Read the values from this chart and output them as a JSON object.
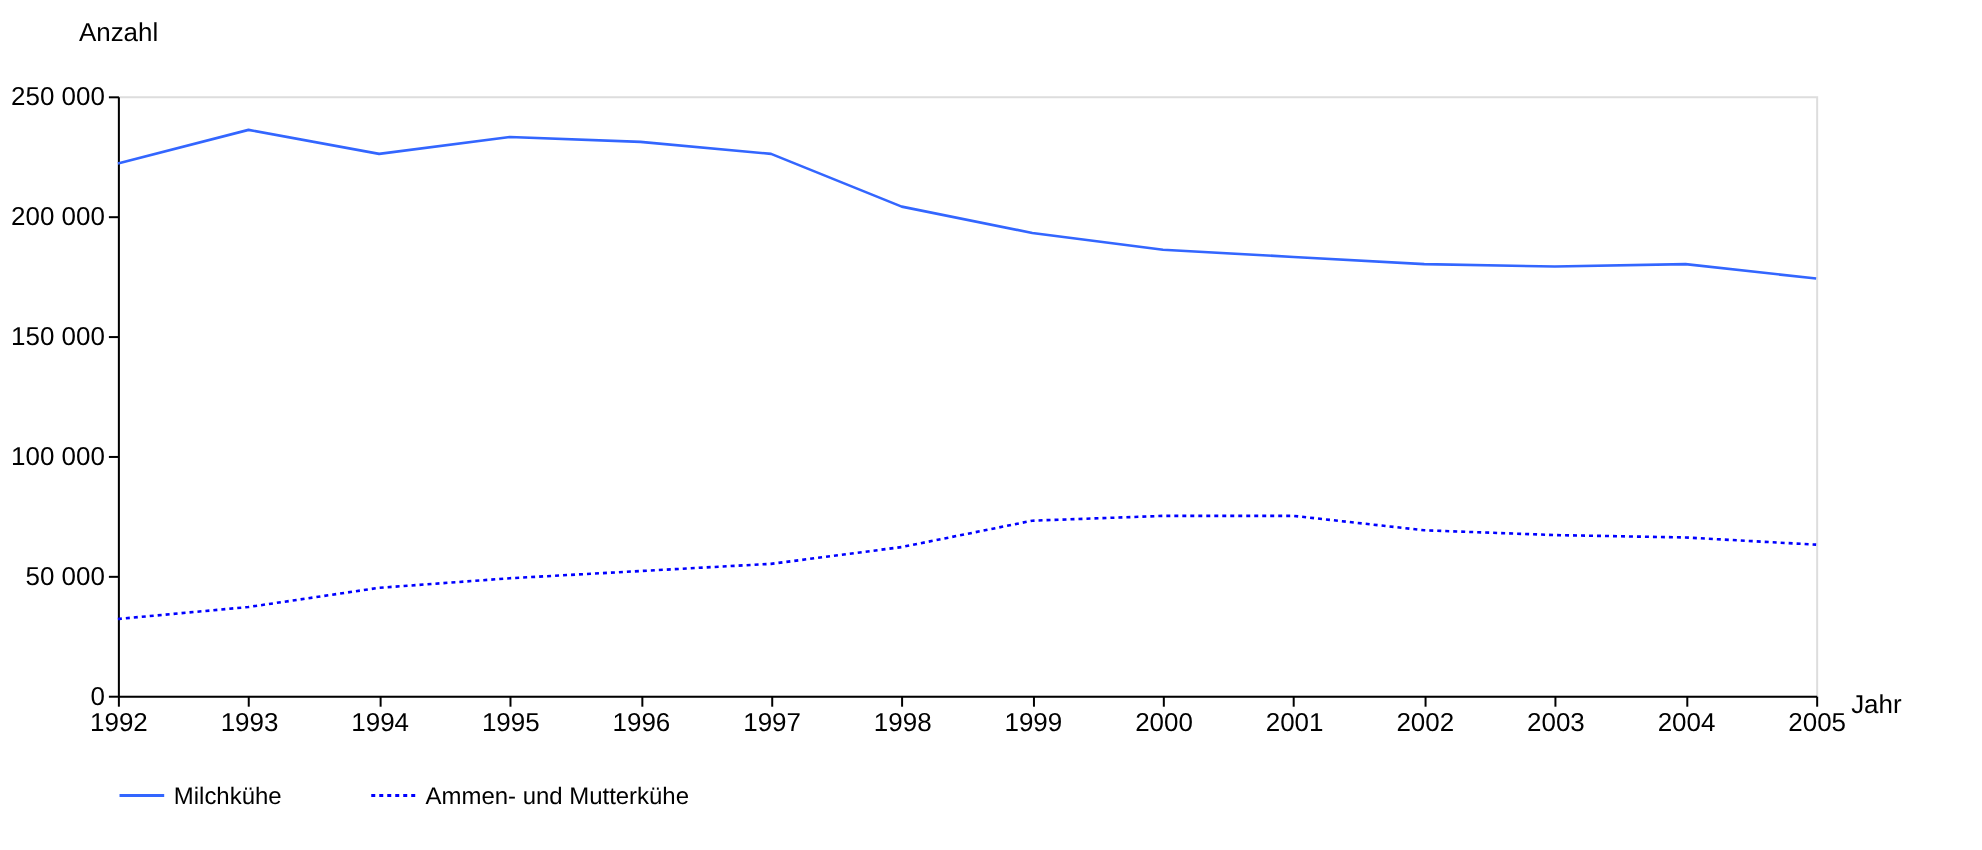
{
  "chart_data": {
    "type": "line",
    "xlabel": "Jahr",
    "ylabel": "Anzahl",
    "x": [
      1992,
      1993,
      1994,
      1995,
      1996,
      1997,
      1998,
      1999,
      2000,
      2001,
      2002,
      2003,
      2004,
      2005
    ],
    "series": [
      {
        "name": "Milchkühe",
        "color": "#3366ff",
        "line_style": "solid",
        "values": [
          222000,
          236000,
          226000,
          233000,
          231000,
          226000,
          204000,
          193000,
          186000,
          183000,
          180000,
          179000,
          180000,
          174000
        ]
      },
      {
        "name": "Ammen- und Mutterkühe",
        "color": "#0000ff",
        "line_style": "dotted",
        "values": [
          32000,
          37000,
          45000,
          49000,
          52000,
          55000,
          62000,
          73000,
          75000,
          75000,
          69000,
          67000,
          66000,
          63000
        ]
      }
    ],
    "xlim": [
      1992,
      2005
    ],
    "xticks": [
      1992,
      1993,
      1994,
      1995,
      1996,
      1997,
      1998,
      1999,
      2000,
      2001,
      2002,
      2003,
      2004,
      2005
    ],
    "ylim": [
      0,
      250000
    ],
    "yticks": [
      0,
      {
        "value": 50000,
        "label": "50 000"
      },
      {
        "value": 100000,
        "label": "100 000"
      },
      {
        "value": 150000,
        "label": "150 000"
      },
      {
        "value": 200000,
        "label": "200 000"
      },
      {
        "value": 250000,
        "label": "250 000"
      }
    ],
    "grid": false,
    "legend": "bottom",
    "marker": "none"
  }
}
